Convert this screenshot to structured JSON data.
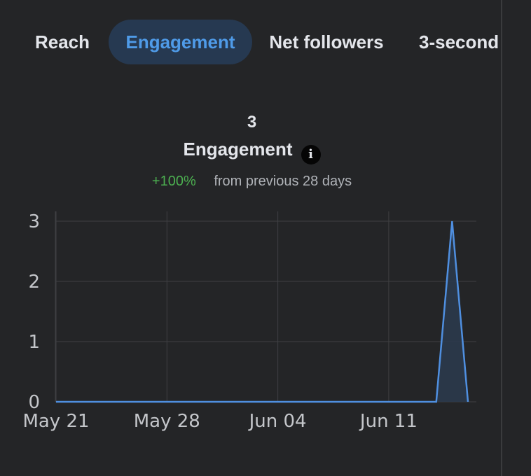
{
  "tabs": [
    {
      "label": "Reach",
      "active": false
    },
    {
      "label": "Engagement",
      "active": true
    },
    {
      "label": "Net followers",
      "active": false
    },
    {
      "label": "3-second",
      "active": false
    }
  ],
  "metric": {
    "value": "3",
    "title": "Engagement",
    "info_icon": "info-icon",
    "change": "+100%",
    "change_color": "#4caf50",
    "period": "from previous 28 days"
  },
  "chart_data": {
    "type": "area",
    "title": "",
    "xlabel": "",
    "ylabel": "",
    "ylim": [
      0,
      3
    ],
    "yticks": [
      0,
      1,
      2,
      3
    ],
    "xtick_labels": [
      "May 21",
      "May 28",
      "Jun 04",
      "Jun 11"
    ],
    "grid": true,
    "line_color": "#4f8fe0",
    "series": [
      {
        "x": [
          "May 21",
          "May 22",
          "May 23",
          "May 24",
          "May 25",
          "May 26",
          "May 27",
          "May 28",
          "May 29",
          "May 30",
          "May 31",
          "Jun 01",
          "Jun 02",
          "Jun 03",
          "Jun 04",
          "Jun 05",
          "Jun 06",
          "Jun 07",
          "Jun 08",
          "Jun 09",
          "Jun 10",
          "Jun 11",
          "Jun 12",
          "Jun 13",
          "Jun 14",
          "Jun 15",
          "Jun 16"
        ],
        "values": [
          0,
          0,
          0,
          0,
          0,
          0,
          0,
          0,
          0,
          0,
          0,
          0,
          0,
          0,
          0,
          0,
          0,
          0,
          0,
          0,
          0,
          0,
          0,
          0,
          0,
          3,
          0
        ]
      }
    ]
  }
}
